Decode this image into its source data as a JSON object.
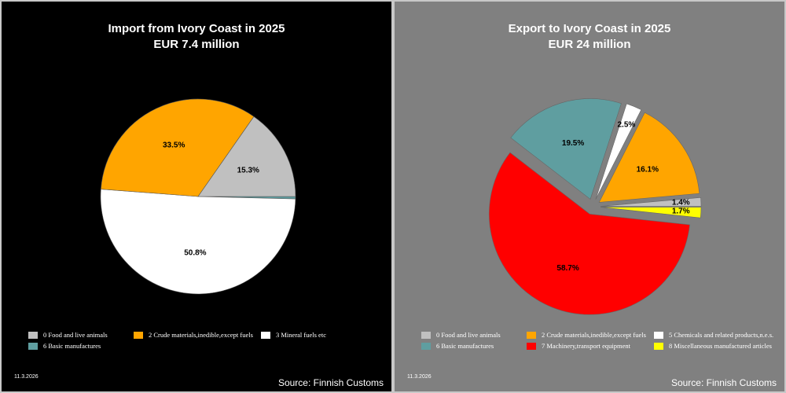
{
  "charts": [
    {
      "title": "Import from Ivory Coast in 2025",
      "subtitle": "EUR   7.4 million",
      "date": "11.3.2026",
      "source": "Source: Finnish Customs",
      "legend": [
        {
          "label": "0 Food and live animals",
          "color": "#c0c0c0"
        },
        {
          "label": "2 Crude materials,inedible,except fuels",
          "color": "#ffa500"
        },
        {
          "label": "3 Mineral fuels etc",
          "color": "#ffffff"
        },
        {
          "label": "6 Basic manufactures",
          "color": "#5f9ea0"
        }
      ]
    },
    {
      "title": "Export to Ivory Coast in 2025",
      "subtitle": "EUR    24 million",
      "date": "11.3.2026",
      "source": "Source: Finnish Customs",
      "legend": [
        {
          "label": "0 Food and live animals",
          "color": "#c0c0c0"
        },
        {
          "label": "2 Crude materials,inedible,except fuels",
          "color": "#ffa500"
        },
        {
          "label": "5 Chemicals and related products,n.e.s.",
          "color": "#ffffff"
        },
        {
          "label": "6 Basic manufactures",
          "color": "#5f9ea0"
        },
        {
          "label": "7 Machinery,transport equipment",
          "color": "#ff0000"
        },
        {
          "label": "8 Miscellaneous manufactured articles",
          "color": "#ffff00"
        }
      ]
    }
  ],
  "chart_data": [
    {
      "type": "pie",
      "title": "Import from Ivory Coast in 2025",
      "subtitle": "EUR   7.4 million",
      "slices": [
        {
          "name": "0 Food and live animals",
          "value": 15.3,
          "label": "15.3%",
          "color": "#c0c0c0",
          "exploded": false
        },
        {
          "name": "2 Crude materials,inedible,except fuels",
          "value": 33.5,
          "label": "33.5%",
          "color": "#ffa500",
          "exploded": false
        },
        {
          "name": "3 Mineral fuels etc",
          "value": 50.8,
          "label": "50.8%",
          "color": "#ffffff",
          "exploded": false
        },
        {
          "name": "6 Basic manufactures",
          "value": 0.4,
          "label": "",
          "color": "#5f9ea0",
          "exploded": false
        }
      ],
      "legend": "bottom"
    },
    {
      "type": "pie",
      "title": "Export to Ivory Coast in 2025",
      "subtitle": "EUR    24 million",
      "slices": [
        {
          "name": "0 Food and live animals",
          "value": 1.4,
          "label": "1.4%",
          "color": "#c0c0c0",
          "exploded": true
        },
        {
          "name": "2 Crude materials,inedible,except fuels",
          "value": 16.1,
          "label": "16.1%",
          "color": "#ffa500",
          "exploded": true
        },
        {
          "name": "5 Chemicals and related products,n.e.s.",
          "value": 2.5,
          "label": "2.5%",
          "color": "#ffffff",
          "exploded": true
        },
        {
          "name": "6 Basic manufactures",
          "value": 19.5,
          "label": "19.5%",
          "color": "#5f9ea0",
          "exploded": true
        },
        {
          "name": "7 Machinery,transport equipment",
          "value": 58.7,
          "label": "58.7%",
          "color": "#ff0000",
          "exploded": true
        },
        {
          "name": "8 Miscellaneous manufactured articles",
          "value": 1.7,
          "label": "1.7%",
          "color": "#ffff00",
          "exploded": true
        }
      ],
      "legend": "bottom"
    }
  ]
}
